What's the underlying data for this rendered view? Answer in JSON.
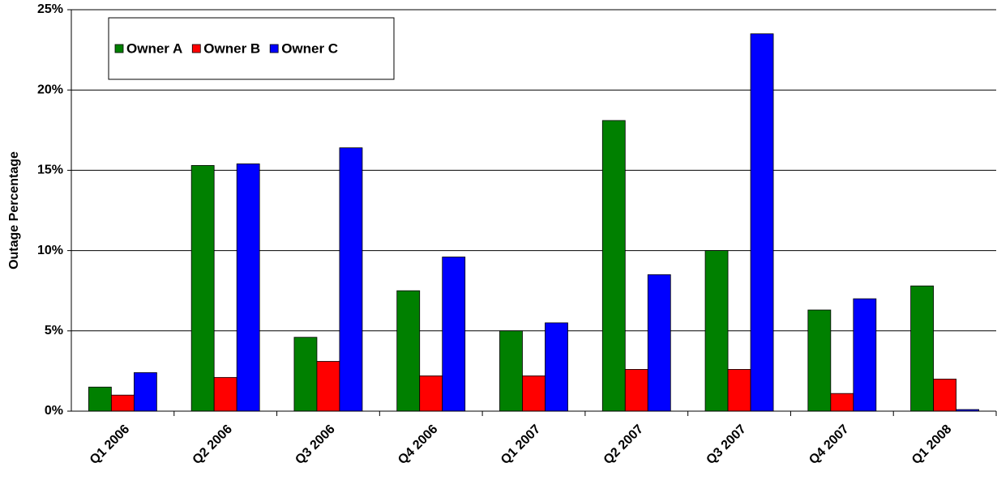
{
  "chart_data": {
    "type": "bar",
    "y_label": "Outage Percentage",
    "categories": [
      "Q1 2006",
      "Q2 2006",
      "Q3 2006",
      "Q4 2006",
      "Q1 2007",
      "Q2 2007",
      "Q3 2007",
      "Q4 2007",
      "Q1 2008"
    ],
    "series": [
      {
        "name": "Owner A",
        "color": "#008000",
        "values": [
          1.5,
          15.3,
          4.6,
          7.5,
          5.0,
          18.1,
          10.0,
          6.3,
          7.8
        ]
      },
      {
        "name": "Owner B",
        "color": "#ff0000",
        "values": [
          1.0,
          2.1,
          3.1,
          2.2,
          2.2,
          2.6,
          2.6,
          1.1,
          2.0
        ]
      },
      {
        "name": "Owner C",
        "color": "#0000ff",
        "values": [
          2.4,
          15.4,
          16.4,
          9.6,
          5.5,
          8.5,
          23.5,
          7.0,
          0.1
        ]
      }
    ],
    "ylim": [
      0,
      25
    ],
    "yticks": [
      {
        "value": 0,
        "label": "0%"
      },
      {
        "value": 5,
        "label": "5%"
      },
      {
        "value": 10,
        "label": "10%"
      },
      {
        "value": 15,
        "label": "15%"
      },
      {
        "value": 20,
        "label": "20%"
      },
      {
        "value": 25,
        "label": "25%"
      }
    ],
    "grid": true
  }
}
